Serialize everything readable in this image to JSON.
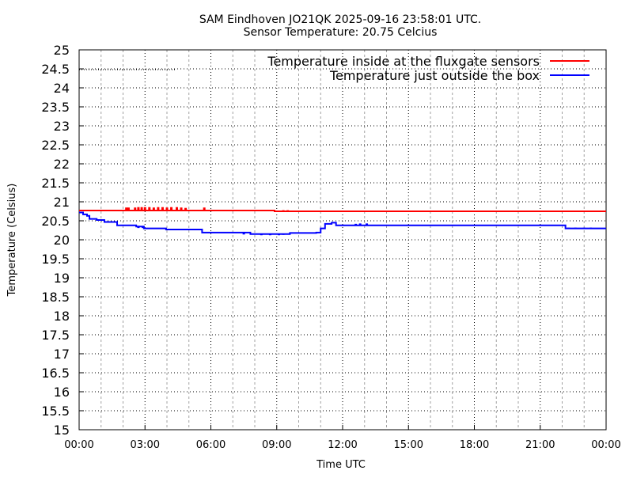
{
  "chart_data": {
    "type": "line",
    "title": "SAM Eindhoven JO21QK 2025-09-16 23:58:01 UTC.",
    "subtitle": "Sensor Temperature: 20.75 Celcius",
    "xlabel": "Time UTC",
    "ylabel": "Temperature (Celsius)",
    "xlim_hours": [
      0,
      24
    ],
    "ylim": [
      15,
      25
    ],
    "grid": true,
    "legend_placement": "top-right",
    "x_ticks": [
      {
        "hour": 0,
        "label": "00:00"
      },
      {
        "hour": 3,
        "label": "03:00"
      },
      {
        "hour": 6,
        "label": "06:00"
      },
      {
        "hour": 9,
        "label": "09:00"
      },
      {
        "hour": 12,
        "label": "12:00"
      },
      {
        "hour": 15,
        "label": "15:00"
      },
      {
        "hour": 18,
        "label": "18:00"
      },
      {
        "hour": 21,
        "label": "21:00"
      },
      {
        "hour": 24,
        "label": "00:00"
      }
    ],
    "y_ticks": [
      "15",
      "15.5",
      "16",
      "16.5",
      "17",
      "17.5",
      "18",
      "18.5",
      "19",
      "19.5",
      "20",
      "20.5",
      "21",
      "21.5",
      "22",
      "22.5",
      "23",
      "23.5",
      "24",
      "24.5",
      "25"
    ],
    "series": [
      {
        "name": "Temperature inside at the fluxgate sensors",
        "color": "#ff0000",
        "points": [
          [
            0,
            20.77
          ],
          [
            8.9,
            20.77
          ],
          [
            8.9,
            20.75
          ],
          [
            24,
            20.75
          ]
        ],
        "spikes": [
          [
            2.15,
            20.85
          ],
          [
            2.25,
            20.85
          ],
          [
            2.55,
            20.85
          ],
          [
            2.7,
            20.86
          ],
          [
            2.85,
            20.86
          ],
          [
            3.0,
            20.86
          ],
          [
            3.2,
            20.86
          ],
          [
            3.4,
            20.85
          ],
          [
            3.6,
            20.86
          ],
          [
            3.8,
            20.86
          ],
          [
            4.0,
            20.85
          ],
          [
            4.2,
            20.86
          ],
          [
            4.45,
            20.86
          ],
          [
            4.65,
            20.85
          ],
          [
            4.85,
            20.84
          ],
          [
            5.7,
            20.85
          ],
          [
            9.0,
            20.73
          ],
          [
            9.3,
            20.78
          ],
          [
            9.5,
            20.78
          ],
          [
            9.7,
            20.77
          ]
        ]
      },
      {
        "name": "Temperature just outside the box",
        "color": "#0000ff",
        "points": [
          [
            0,
            20.72
          ],
          [
            0.18,
            20.67
          ],
          [
            0.36,
            20.63
          ],
          [
            0.47,
            20.55
          ],
          [
            0.8,
            20.52
          ],
          [
            1.15,
            20.47
          ],
          [
            1.73,
            20.38
          ],
          [
            2.6,
            20.35
          ],
          [
            2.95,
            20.3
          ],
          [
            3.96,
            20.27
          ],
          [
            5.6,
            20.19
          ],
          [
            7.8,
            20.19
          ],
          [
            7.8,
            20.15
          ],
          [
            9.6,
            20.18
          ],
          [
            10.8,
            20.19
          ],
          [
            11.0,
            20.3
          ],
          [
            11.2,
            20.42
          ],
          [
            11.5,
            20.45
          ],
          [
            11.7,
            20.38
          ],
          [
            22.1,
            20.38
          ],
          [
            22.15,
            20.3
          ],
          [
            24,
            20.3
          ]
        ],
        "spikes": [
          [
            2.7,
            20.31
          ],
          [
            2.9,
            20.31
          ],
          [
            4.1,
            20.25
          ],
          [
            7.5,
            20.14
          ],
          [
            8.3,
            20.12
          ],
          [
            8.7,
            20.12
          ],
          [
            9.1,
            20.12
          ],
          [
            9.3,
            20.13
          ],
          [
            12.6,
            20.42
          ],
          [
            12.8,
            20.43
          ],
          [
            13.1,
            20.43
          ],
          [
            22.3,
            20.32
          ],
          [
            22.6,
            20.32
          ],
          [
            23.0,
            20.32
          ],
          [
            23.3,
            20.32
          ]
        ]
      }
    ]
  }
}
